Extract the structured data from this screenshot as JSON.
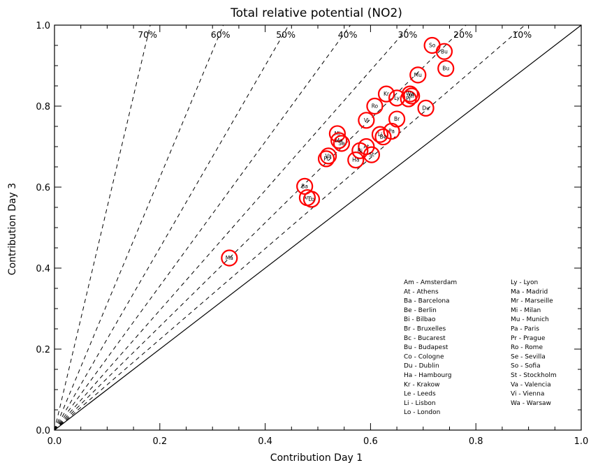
{
  "chart_data": {
    "type": "scatter",
    "title": "Total relative potential (NO2)",
    "xlabel": "Contribution Day 1",
    "ylabel": "Contribution Day 3",
    "xlim": [
      0.0,
      1.0
    ],
    "ylim": [
      0.0,
      1.0
    ],
    "x_ticks": [
      "0.0",
      "0.2",
      "0.4",
      "0.6",
      "0.8",
      "1.0"
    ],
    "y_ticks": [
      "0.0",
      "0.2",
      "0.4",
      "0.6",
      "0.8",
      "1.0"
    ],
    "grid": false,
    "marker_color": "#ff0000",
    "iso_lines": [
      {
        "label": "70%",
        "slope": 5.5
      },
      {
        "label": "60%",
        "slope": 3.12
      },
      {
        "label": "50%",
        "slope": 2.25
      },
      {
        "label": "40%",
        "slope": 1.78
      },
      {
        "label": "30%",
        "slope": 1.48
      },
      {
        "label": "20%",
        "slope": 1.28
      },
      {
        "label": "10%",
        "slope": 1.12
      }
    ],
    "diagonal": {
      "from": [
        0,
        0
      ],
      "to": [
        1,
        1
      ],
      "style": "solid"
    },
    "points": [
      {
        "label": "So",
        "x": 0.717,
        "y": 0.95
      },
      {
        "label": "Bu",
        "x": 0.74,
        "y": 0.935
      },
      {
        "label": "Bu",
        "x": 0.743,
        "y": 0.893
      },
      {
        "label": "Mu",
        "x": 0.69,
        "y": 0.877
      },
      {
        "label": "Kr",
        "x": 0.63,
        "y": 0.83
      },
      {
        "label": "Ly",
        "x": 0.65,
        "y": 0.82
      },
      {
        "label": "Mr",
        "x": 0.678,
        "y": 0.825
      },
      {
        "label": "Pr",
        "x": 0.672,
        "y": 0.818
      },
      {
        "label": "Wa",
        "x": 0.675,
        "y": 0.83
      },
      {
        "label": "Ro",
        "x": 0.608,
        "y": 0.8
      },
      {
        "label": "Du",
        "x": 0.705,
        "y": 0.795
      },
      {
        "label": "Br",
        "x": 0.65,
        "y": 0.768
      },
      {
        "label": "Vi",
        "x": 0.592,
        "y": 0.765
      },
      {
        "label": "Pa",
        "x": 0.64,
        "y": 0.738
      },
      {
        "label": "Li",
        "x": 0.618,
        "y": 0.73
      },
      {
        "label": "Be",
        "x": 0.624,
        "y": 0.724
      },
      {
        "label": "Mi",
        "x": 0.537,
        "y": 0.732
      },
      {
        "label": "Ma",
        "x": 0.54,
        "y": 0.715
      },
      {
        "label": "Se",
        "x": 0.545,
        "y": 0.708
      },
      {
        "label": "At",
        "x": 0.592,
        "y": 0.7
      },
      {
        "label": "Bi",
        "x": 0.58,
        "y": 0.69
      },
      {
        "label": "St",
        "x": 0.602,
        "y": 0.68
      },
      {
        "label": "Va",
        "x": 0.52,
        "y": 0.677
      },
      {
        "label": "Pr",
        "x": 0.516,
        "y": 0.67
      },
      {
        "label": "Ha",
        "x": 0.572,
        "y": 0.667
      },
      {
        "label": "Ba",
        "x": 0.475,
        "y": 0.602
      },
      {
        "label": "Am",
        "x": 0.48,
        "y": 0.574
      },
      {
        "label": "Lo",
        "x": 0.488,
        "y": 0.57
      },
      {
        "label": "Ma",
        "x": 0.332,
        "y": 0.425
      }
    ],
    "legend_position": "bottom-right",
    "legend": {
      "col1": [
        "Am - Amsterdam",
        "At - Athens",
        "Ba - Barcelona",
        "Be - Berlin",
        "Bi - Bilbao",
        "Br - Bruxelles",
        "Bc - Bucarest",
        "Bu - Budapest",
        "Co - Cologne",
        "Du - Dublin",
        "Ha - Hambourg",
        "Kr - Krakow",
        "Le - Leeds",
        "Li - Lisbon",
        "Lo - London"
      ],
      "col2": [
        "Ly - Lyon",
        "Ma - Madrid",
        "Mr - Marseille",
        "Mi - Milan",
        "Mu - Munich",
        "Pa - Paris",
        "Pr - Prague",
        "Ro - Rome",
        "Se - Sevilla",
        "So - Sofia",
        "St - Stockholm",
        "Va - Valencia",
        "Vi - Vienna",
        "Wa - Warsaw"
      ]
    }
  }
}
